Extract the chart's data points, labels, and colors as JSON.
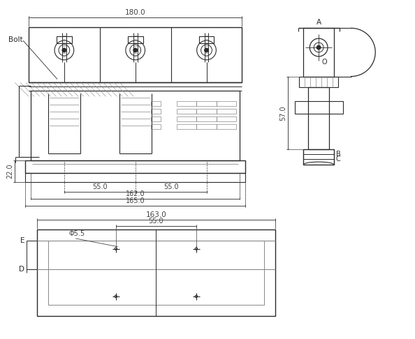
{
  "line_color": "#2a2a2a",
  "dim_color": "#444444",
  "gray": "#888888",
  "light_gray": "#cccccc",
  "bg_color": "#ffffff",
  "fig_width": 5.94,
  "fig_height": 4.86,
  "dpi": 100,
  "annotations": {
    "dim_180": "180.0",
    "dim_22": "22.0",
    "dim_55a": "55.0",
    "dim_55b": "55.0",
    "dim_162": "162.0",
    "dim_165": "165.0",
    "dim_57": "57.0",
    "label_A": "A",
    "label_B": "B",
    "label_C": "C",
    "label_O": "O",
    "label_Bolt": "Bolt",
    "dim_163": "163.0",
    "dim_55c": "55.0",
    "dim_phi55": "Φ5.5",
    "label_D": "D",
    "label_E": "E"
  }
}
